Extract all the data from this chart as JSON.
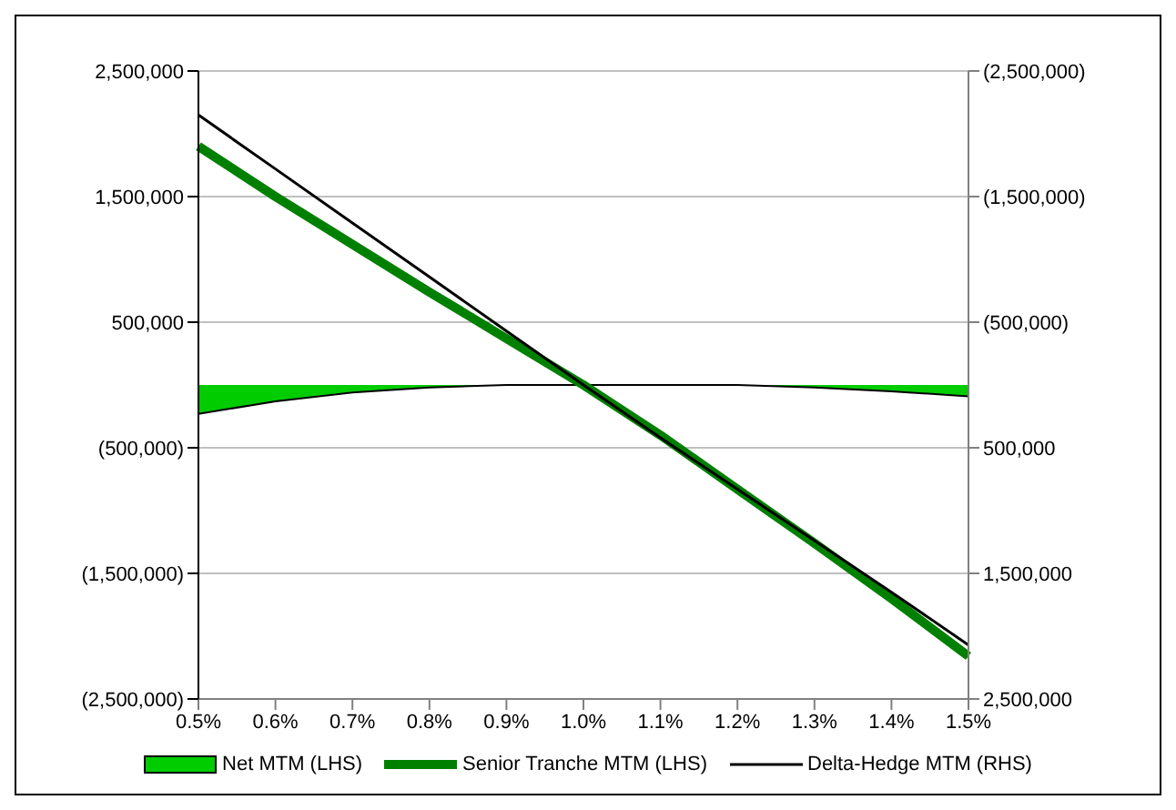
{
  "chart_data": {
    "type": "line",
    "categories": [
      "0.5%",
      "0.6%",
      "0.7%",
      "0.8%",
      "0.9%",
      "1.0%",
      "1.1%",
      "1.2%",
      "1.3%",
      "1.4%",
      "1.5%"
    ],
    "series": [
      {
        "name": "Net MTM (LHS)",
        "type": "area",
        "color": "#00cc00",
        "values": [
          -230000,
          -130000,
          -60000,
          -20000,
          0,
          0,
          0,
          0,
          -20000,
          -50000,
          -90000
        ]
      },
      {
        "name": "Senior Tranche MTM (LHS)",
        "color": "#008000",
        "values": [
          1900000,
          1500000,
          1120000,
          740000,
          370000,
          0,
          -400000,
          -830000,
          -1260000,
          -1700000,
          -2160000
        ]
      },
      {
        "name": "Delta-Hedge MTM (RHS)",
        "axis": "y2",
        "color": "#000000",
        "values": [
          -2150000,
          -1720000,
          -1290000,
          -860000,
          -430000,
          0,
          420000,
          830000,
          1240000,
          1650000,
          2070000
        ]
      }
    ],
    "ylim": [
      -2500000,
      2500000
    ],
    "yticks": [
      {
        "value": -2500000,
        "label": "(2,500,000)"
      },
      {
        "value": -1500000,
        "label": "(1,500,000)"
      },
      {
        "value": -500000,
        "label": "(500,000)"
      },
      {
        "value": 500000,
        "label": "500,000"
      },
      {
        "value": 1500000,
        "label": "1,500,000"
      },
      {
        "value": 2500000,
        "label": "2,500,000"
      }
    ],
    "y2lim": [
      2500000,
      -2500000
    ],
    "y2ticks": [
      {
        "value": -2500000,
        "label": "(2,500,000)"
      },
      {
        "value": -1500000,
        "label": "(1,500,000)"
      },
      {
        "value": -500000,
        "label": "(500,000)"
      },
      {
        "value": 500000,
        "label": "500,000"
      },
      {
        "value": 1500000,
        "label": "1,500,000"
      },
      {
        "value": 2500000,
        "label": "2,500,000"
      }
    ],
    "grid": "y",
    "legend": "bottom",
    "marker": "none"
  }
}
